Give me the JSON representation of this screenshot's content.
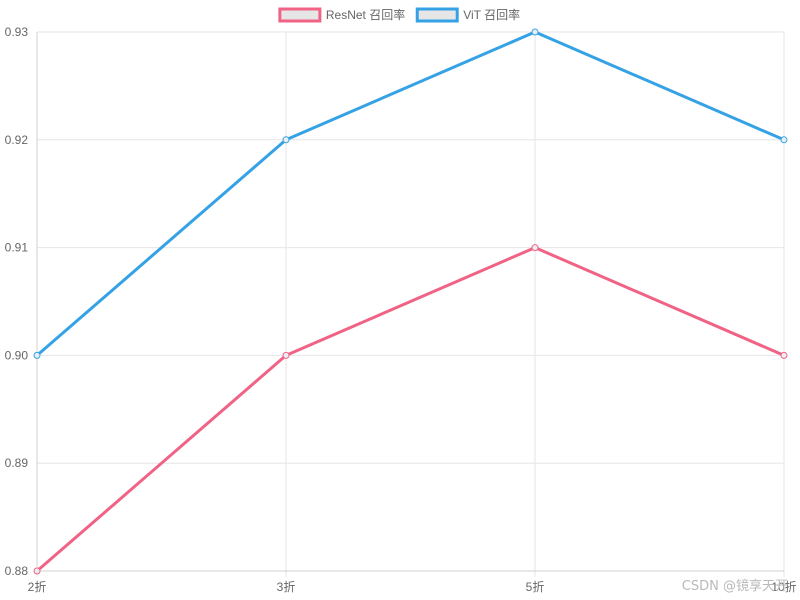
{
  "chart_data": {
    "type": "line",
    "title": "",
    "xlabel": "",
    "ylabel": "",
    "categories": [
      "2折",
      "3折",
      "5折",
      "10折"
    ],
    "ylim": [
      0.88,
      0.93
    ],
    "yticks": [
      "0.88",
      "0.89",
      "0.90",
      "0.91",
      "0.92",
      "0.93"
    ],
    "grid": true,
    "legend_position": "top-center",
    "series": [
      {
        "name": "ResNet 召回率",
        "values": [
          0.88,
          0.9,
          0.91,
          0.9
        ],
        "color": "#f06385"
      },
      {
        "name": "ViT 召回率",
        "values": [
          0.9,
          0.92,
          0.93,
          0.92
        ],
        "color": "#36a2e6"
      }
    ]
  },
  "watermark": "CSDN @镜享天开"
}
